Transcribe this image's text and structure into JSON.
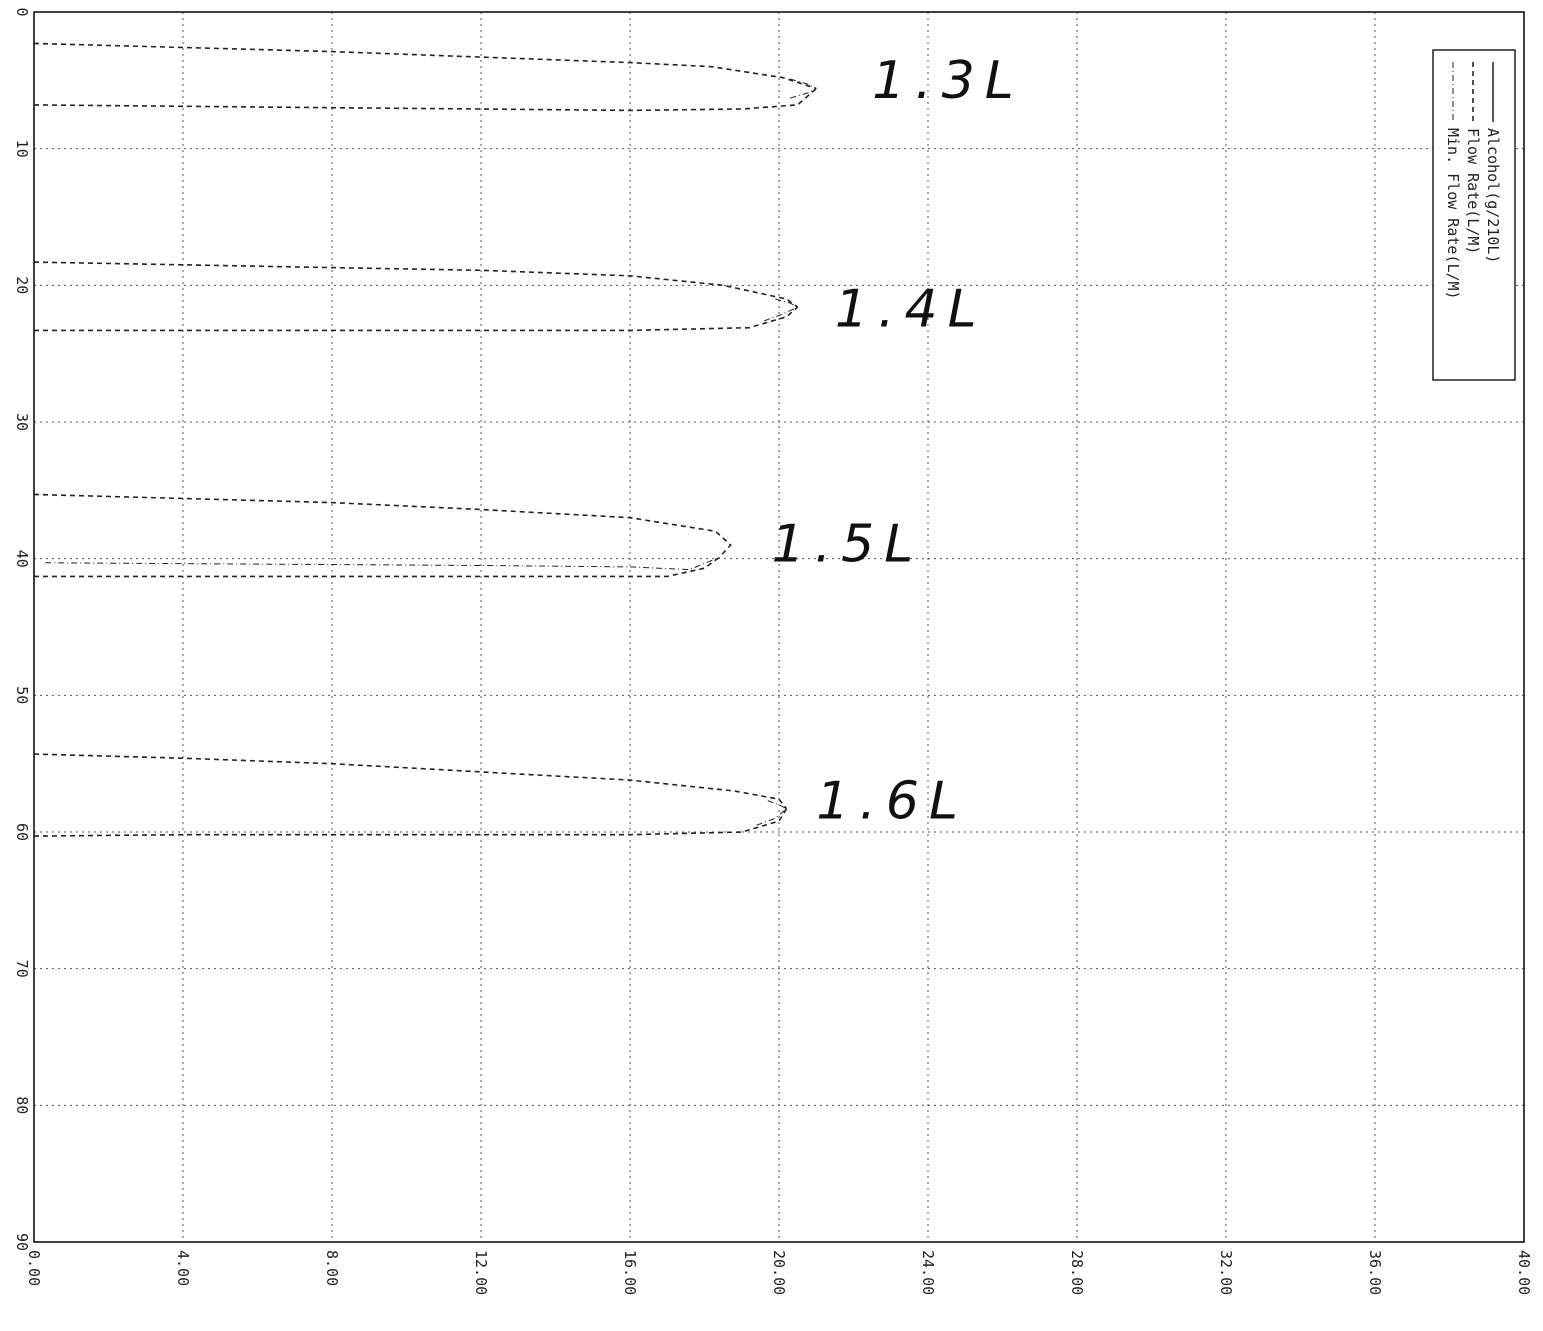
{
  "chart_data": {
    "type": "line",
    "orientation": "rotated-90-clockwise",
    "xlim": [
      0,
      40
    ],
    "ylim": [
      0,
      90
    ],
    "x_tick_labels": [
      "0.00",
      "4.00",
      "8.00",
      "12.00",
      "16.00",
      "20.00",
      "24.00",
      "28.00",
      "32.00",
      "36.00",
      "40.00"
    ],
    "y_tick_labels": [
      "0",
      "10",
      "20",
      "30",
      "40",
      "50",
      "60",
      "70",
      "80",
      "90"
    ],
    "grid": true,
    "legend_position": "top-right",
    "legend": [
      {
        "name": "Alcohol(g/210L)",
        "style": "solid"
      },
      {
        "name": "Flow Rate(L/M)",
        "style": "dashed"
      },
      {
        "name": "Min. Flow Rate(L/M)",
        "style": "dash-dot"
      }
    ],
    "series": [
      {
        "name": "Flow Rate(L/M)",
        "segments": [
          {
            "upper": [
              [
                0,
                2.3
              ],
              [
                4,
                2.6
              ],
              [
                8,
                2.9
              ],
              [
                12,
                3.3
              ],
              [
                16,
                3.7
              ],
              [
                18.2,
                4.0
              ],
              [
                20.1,
                4.8
              ],
              [
                21,
                5.6
              ]
            ],
            "lower": [
              [
                0,
                6.8
              ],
              [
                4,
                6.9
              ],
              [
                8,
                7.0
              ],
              [
                12,
                7.1
              ],
              [
                16,
                7.2
              ],
              [
                19,
                7.1
              ],
              [
                20.5,
                6.8
              ],
              [
                21,
                5.6
              ]
            ]
          },
          {
            "upper": [
              [
                0,
                18.3
              ],
              [
                4,
                18.5
              ],
              [
                8,
                18.7
              ],
              [
                12,
                18.9
              ],
              [
                16,
                19.3
              ],
              [
                18.5,
                20.0
              ],
              [
                20.2,
                21.0
              ],
              [
                20.5,
                21.6
              ]
            ],
            "lower": [
              [
                0,
                23.3
              ],
              [
                4,
                23.3
              ],
              [
                8,
                23.3
              ],
              [
                12,
                23.3
              ],
              [
                16,
                23.3
              ],
              [
                19.2,
                23.1
              ],
              [
                20.2,
                22.3
              ],
              [
                20.5,
                21.6
              ]
            ]
          },
          {
            "upper": [
              [
                0,
                35.3
              ],
              [
                4,
                35.6
              ],
              [
                8,
                35.9
              ],
              [
                12,
                36.4
              ],
              [
                16,
                37.0
              ],
              [
                18.3,
                38.0
              ],
              [
                18.7,
                39.0
              ],
              [
                18.4,
                39.9
              ]
            ],
            "lower": [
              [
                0,
                41.3
              ],
              [
                4,
                41.3
              ],
              [
                8,
                41.3
              ],
              [
                12,
                41.3
              ],
              [
                17,
                41.3
              ],
              [
                18.0,
                40.7
              ],
              [
                18.4,
                39.9
              ]
            ]
          },
          {
            "upper": [
              [
                0,
                54.3
              ],
              [
                4,
                54.6
              ],
              [
                8,
                55.0
              ],
              [
                12,
                55.6
              ],
              [
                16,
                56.2
              ],
              [
                18.8,
                57.0
              ],
              [
                20.0,
                57.6
              ],
              [
                20.2,
                58.3
              ]
            ],
            "lower": [
              [
                0,
                60.3
              ],
              [
                4,
                60.2
              ],
              [
                8,
                60.2
              ],
              [
                12,
                60.2
              ],
              [
                16,
                60.2
              ],
              [
                19.0,
                60.0
              ],
              [
                20.0,
                59.2
              ],
              [
                20.2,
                58.3
              ]
            ]
          }
        ]
      },
      {
        "name": "Min. Flow Rate(L/M)",
        "segments": [
          {
            "upper": [
              [
                20.3,
                4.9
              ],
              [
                20.8,
                5.3
              ],
              [
                21.0,
                5.6
              ]
            ],
            "lower": [
              [
                20.3,
                6.3
              ],
              [
                20.8,
                5.9
              ],
              [
                21.0,
                5.6
              ]
            ]
          },
          {
            "upper": [
              [
                19.9,
                21.0
              ],
              [
                20.3,
                21.3
              ],
              [
                20.5,
                21.6
              ]
            ],
            "lower": [
              [
                19.6,
                22.6
              ],
              [
                20.1,
                22.1
              ],
              [
                20.5,
                21.6
              ]
            ]
          },
          {
            "upper": [
              [
                0.3,
                40.3
              ],
              [
                6,
                40.4
              ],
              [
                12,
                40.5
              ],
              [
                16,
                40.6
              ],
              [
                17.6,
                40.8
              ],
              [
                18.4,
                39.9
              ]
            ],
            "lower": [
              [
                0.3,
                40.3
              ]
            ]
          },
          {
            "upper": [
              [
                19.7,
                57.7
              ],
              [
                20.0,
                58.0
              ],
              [
                20.2,
                58.3
              ]
            ],
            "lower": [
              [
                19.4,
                59.5
              ],
              [
                19.9,
                59.0
              ],
              [
                20.2,
                58.3
              ]
            ]
          }
        ]
      },
      {
        "name": "Alcohol(g/210L)",
        "segments": []
      }
    ],
    "annotations": [
      {
        "text": "1.3L",
        "x": 22.5,
        "y": 6.3
      },
      {
        "text": "1.4L",
        "x": 21.5,
        "y": 23.0
      },
      {
        "text": "1.5L",
        "x": 19.8,
        "y": 40.2
      },
      {
        "text": "1.6L",
        "x": 21.0,
        "y": 59.0
      }
    ]
  }
}
